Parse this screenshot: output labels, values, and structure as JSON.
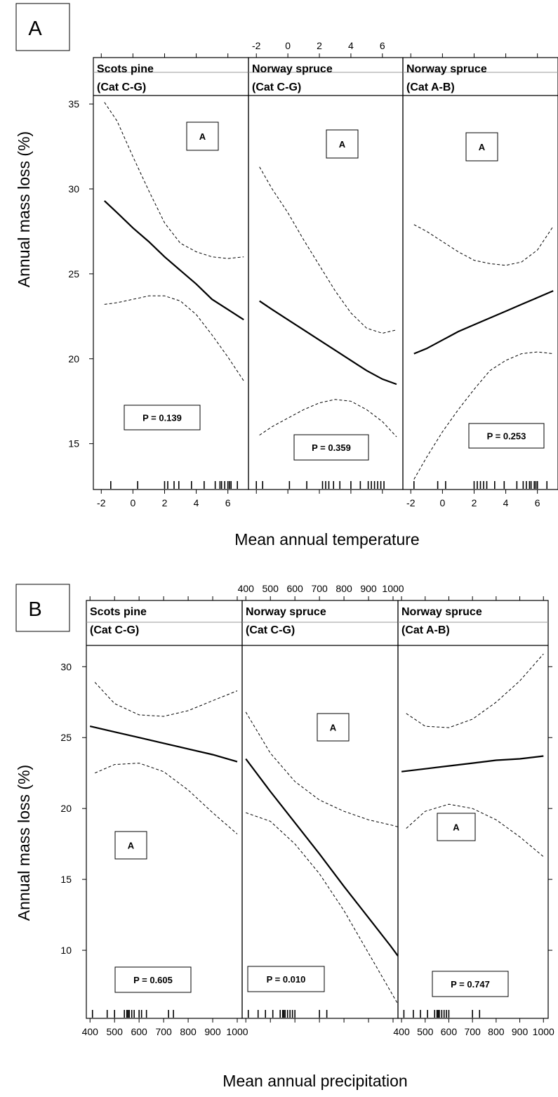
{
  "panels": [
    {
      "label": "A",
      "xlabel": "Mean annual temperature",
      "ylabel": "Annual mass loss (%)",
      "x_ticks": [
        "-2",
        "0",
        "2",
        "4",
        "6"
      ],
      "y_ticks": [
        "15",
        "20",
        "25",
        "30",
        "35"
      ],
      "facets": [
        {
          "title_line1": "Scots pine",
          "title_line2": "(Cat C-G)",
          "letter": "A",
          "p_label": "P = 0.139"
        },
        {
          "title_line1": "Norway spruce",
          "title_line2": "(Cat C-G)",
          "letter": "A",
          "p_label": "P = 0.359"
        },
        {
          "title_line1": "Norway spruce",
          "title_line2": "(Cat A-B)",
          "letter": "A",
          "p_label": "P = 0.253"
        }
      ]
    },
    {
      "label": "B",
      "xlabel": "Mean annual precipitation",
      "ylabel": "Annual mass loss (%)",
      "x_ticks": [
        "400",
        "500",
        "600",
        "700",
        "800",
        "900",
        "1000"
      ],
      "y_ticks": [
        "10",
        "15",
        "20",
        "25",
        "30"
      ],
      "facets": [
        {
          "title_line1": "Scots pine",
          "title_line2": "(Cat C-G)",
          "letter": "A",
          "p_label": "P = 0.605"
        },
        {
          "title_line1": "Norway spruce",
          "title_line2": "(Cat C-G)",
          "letter": "A",
          "p_label": "P = 0.010"
        },
        {
          "title_line1": "Norway spruce",
          "title_line2": "(Cat A-B)",
          "letter": "A",
          "p_label": "P = 0.747"
        }
      ]
    }
  ],
  "chart_data": [
    {
      "type": "line",
      "panel": "A",
      "xlabel": "Mean annual temperature",
      "ylabel": "Annual mass loss (%)",
      "xlim": [
        -2.5,
        7.3
      ],
      "ylim": [
        12.3,
        35.5
      ],
      "x_ticks": [
        -2,
        0,
        2,
        4,
        6
      ],
      "y_ticks": [
        15,
        20,
        25,
        30,
        35
      ],
      "facets": [
        {
          "name": "Scots pine (Cat C-G)",
          "p_value": "P = 0.139",
          "fit": {
            "x": [
              -1.8,
              -1,
              0,
              1,
              2,
              3,
              4,
              5,
              6,
              7
            ],
            "y": [
              29.3,
              28.6,
              27.7,
              26.9,
              26.0,
              25.2,
              24.4,
              23.5,
              22.9,
              22.3
            ]
          },
          "upper": {
            "x": [
              -1.8,
              -1,
              0,
              1,
              2,
              3,
              4,
              5,
              6,
              7
            ],
            "y": [
              35.1,
              34.0,
              31.9,
              29.9,
              28.0,
              26.8,
              26.3,
              26.0,
              25.9,
              26.0
            ]
          },
          "lower": {
            "x": [
              -1.8,
              -1,
              0,
              1,
              2,
              3,
              4,
              5,
              6,
              7
            ],
            "y": [
              23.2,
              23.3,
              23.5,
              23.7,
              23.7,
              23.4,
              22.6,
              21.4,
              20.1,
              18.7
            ]
          },
          "rug": [
            -1.4,
            0.3,
            2.0,
            2.2,
            2.6,
            2.9,
            3.7,
            4.5,
            5.2,
            5.5,
            5.6,
            5.8,
            6.0,
            6.1,
            6.2,
            6.6
          ]
        },
        {
          "name": "Norway spruce (Cat C-G)",
          "p_value": "P = 0.359",
          "fit": {
            "x": [
              -1.8,
              -1,
              0,
              1,
              2,
              3,
              4,
              5,
              6,
              6.9
            ],
            "y": [
              23.4,
              22.9,
              22.3,
              21.7,
              21.1,
              20.5,
              19.9,
              19.3,
              18.8,
              18.5
            ]
          },
          "upper": {
            "x": [
              -1.8,
              -1,
              0,
              1,
              2,
              3,
              4,
              5,
              6,
              6.9
            ],
            "y": [
              31.3,
              30.0,
              28.6,
              27.0,
              25.5,
              24.0,
              22.7,
              21.8,
              21.5,
              21.7
            ]
          },
          "lower": {
            "x": [
              -1.8,
              -1,
              0,
              1,
              2,
              3,
              4,
              5,
              6,
              6.9
            ],
            "y": [
              15.5,
              16.0,
              16.5,
              17.0,
              17.4,
              17.6,
              17.5,
              17.0,
              16.3,
              15.4
            ]
          },
          "rug": [
            -2.0,
            -1.6,
            0.1,
            1.2,
            2.2,
            2.4,
            2.6,
            2.9,
            3.3,
            4.0,
            4.6,
            5.1,
            5.3,
            5.5,
            5.7,
            5.9,
            6.1
          ]
        },
        {
          "name": "Norway spruce (Cat A-B)",
          "p_value": "P = 0.253",
          "fit": {
            "x": [
              -1.8,
              -1,
              0,
              1,
              2,
              3,
              4,
              5,
              6,
              7
            ],
            "y": [
              20.3,
              20.6,
              21.1,
              21.6,
              22.0,
              22.4,
              22.8,
              23.2,
              23.6,
              24.0
            ]
          },
          "upper": {
            "x": [
              -1.8,
              -1,
              0,
              1,
              2,
              3,
              4,
              5,
              6,
              7
            ],
            "y": [
              27.9,
              27.5,
              26.9,
              26.3,
              25.8,
              25.6,
              25.5,
              25.7,
              26.4,
              27.8
            ]
          },
          "lower": {
            "x": [
              -1.8,
              -1,
              0,
              1,
              2,
              3,
              4,
              5,
              6,
              7
            ],
            "y": [
              12.9,
              14.2,
              15.7,
              17.0,
              18.2,
              19.3,
              19.9,
              20.3,
              20.4,
              20.3
            ]
          },
          "rug": [
            -1.8,
            -0.3,
            0.2,
            2.0,
            2.2,
            2.4,
            2.6,
            2.8,
            3.3,
            3.9,
            4.7,
            5.1,
            5.3,
            5.5,
            5.6,
            5.8,
            5.9,
            6.0,
            6.6
          ]
        }
      ]
    },
    {
      "type": "line",
      "panel": "B",
      "xlabel": "Mean annual precipitation",
      "ylabel": "Annual mass loss (%)",
      "xlim": [
        385,
        1020
      ],
      "ylim": [
        5.2,
        31.5
      ],
      "x_ticks": [
        400,
        500,
        600,
        700,
        800,
        900,
        1000
      ],
      "y_ticks": [
        10,
        15,
        20,
        25,
        30
      ],
      "facets": [
        {
          "name": "Scots pine (Cat C-G)",
          "p_value": "P = 0.605",
          "fit": {
            "x": [
              400,
              500,
              600,
              700,
              800,
              900,
              1000
            ],
            "y": [
              25.8,
              25.4,
              25.0,
              24.6,
              24.2,
              23.8,
              23.3
            ]
          },
          "upper": {
            "x": [
              420,
              500,
              600,
              700,
              800,
              900,
              1000
            ],
            "y": [
              28.9,
              27.4,
              26.6,
              26.5,
              26.9,
              27.6,
              28.3
            ]
          },
          "lower": {
            "x": [
              420,
              500,
              600,
              700,
              800,
              900,
              1000
            ],
            "y": [
              22.5,
              23.1,
              23.2,
              22.6,
              21.3,
              19.7,
              18.2
            ]
          },
          "rug": [
            410,
            470,
            500,
            540,
            550,
            555,
            560,
            570,
            580,
            600,
            610,
            630,
            720,
            740
          ]
        },
        {
          "name": "Norway spruce (Cat C-G)",
          "p_value": "P = 0.010",
          "fit": {
            "x": [
              400,
              500,
              600,
              700,
              800,
              900,
              990,
              1020
            ],
            "y": [
              23.5,
              21.2,
              19.0,
              16.8,
              14.5,
              12.3,
              10.3,
              9.6
            ]
          },
          "upper": {
            "x": [
              400,
              500,
              600,
              700,
              800,
              900,
              1000,
              1020
            ],
            "y": [
              26.8,
              23.9,
              21.9,
              20.6,
              19.8,
              19.2,
              18.8,
              18.7
            ]
          },
          "lower": {
            "x": [
              400,
              500,
              600,
              700,
              800,
              900,
              1000,
              1020
            ],
            "y": [
              19.7,
              19.1,
              17.5,
              15.4,
              12.8,
              9.8,
              6.8,
              6.2
            ]
          },
          "rug": [
            410,
            450,
            480,
            510,
            540,
            550,
            555,
            560,
            570,
            580,
            590,
            600,
            700,
            730
          ]
        },
        {
          "name": "Norway spruce (Cat A-B)",
          "p_value": "P = 0.747",
          "fit": {
            "x": [
              400,
              500,
              600,
              700,
              800,
              900,
              1000
            ],
            "y": [
              22.6,
              22.8,
              23.0,
              23.2,
              23.4,
              23.5,
              23.7
            ]
          },
          "upper": {
            "x": [
              420,
              500,
              600,
              700,
              800,
              900,
              1000
            ],
            "y": [
              26.7,
              25.8,
              25.7,
              26.3,
              27.5,
              29.0,
              30.9
            ]
          },
          "lower": {
            "x": [
              420,
              500,
              600,
              700,
              800,
              900,
              1000
            ],
            "y": [
              18.6,
              19.8,
              20.3,
              20.0,
              19.2,
              18.0,
              16.6
            ]
          },
          "rug": [
            410,
            450,
            480,
            510,
            540,
            550,
            555,
            560,
            570,
            580,
            590,
            600,
            700,
            730
          ]
        }
      ]
    }
  ]
}
